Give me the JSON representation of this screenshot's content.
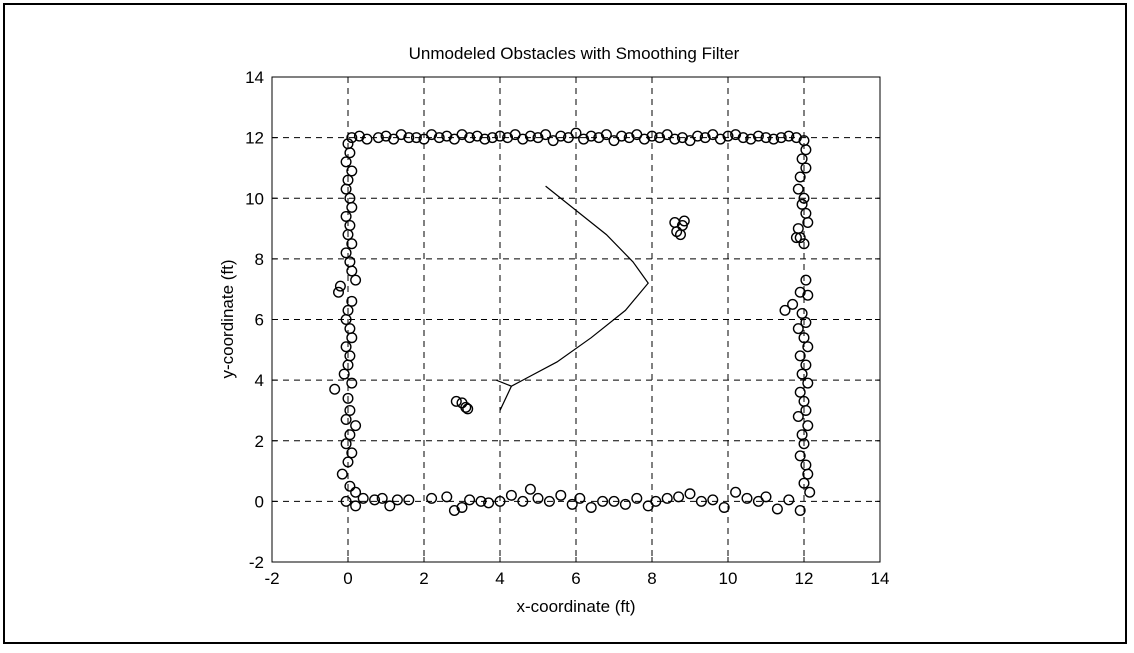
{
  "chart_data": {
    "type": "scatter",
    "title": "Unmodeled Obstacles with Smoothing Filter",
    "xlabel": "x-coordinate (ft)",
    "ylabel": "y-coordinate (ft)",
    "xlim": [
      -2,
      14
    ],
    "ylim": [
      -2,
      14
    ],
    "xticks": [
      -2,
      0,
      2,
      4,
      6,
      8,
      10,
      12,
      14
    ],
    "yticks": [
      -2,
      0,
      2,
      4,
      6,
      8,
      10,
      12,
      14
    ],
    "grid": true,
    "colors": {
      "marker": "#000000",
      "line": "#000000",
      "grid": "#000000"
    },
    "series": [
      {
        "type": "scatter",
        "marker": "circle-open",
        "points": [
          [
            0.1,
            12.0
          ],
          [
            0.3,
            12.05
          ],
          [
            0.5,
            11.95
          ],
          [
            0.8,
            12.0
          ],
          [
            1.0,
            12.05
          ],
          [
            1.2,
            11.95
          ],
          [
            1.4,
            12.1
          ],
          [
            1.6,
            12.0
          ],
          [
            1.8,
            12.0
          ],
          [
            2.0,
            11.95
          ],
          [
            2.2,
            12.1
          ],
          [
            2.4,
            12.0
          ],
          [
            2.6,
            12.05
          ],
          [
            2.8,
            11.95
          ],
          [
            3.0,
            12.1
          ],
          [
            3.2,
            12.0
          ],
          [
            3.4,
            12.05
          ],
          [
            3.6,
            11.95
          ],
          [
            3.8,
            12.0
          ],
          [
            4.0,
            12.05
          ],
          [
            4.2,
            12.0
          ],
          [
            4.4,
            12.1
          ],
          [
            4.6,
            11.95
          ],
          [
            4.8,
            12.05
          ],
          [
            5.0,
            12.0
          ],
          [
            5.2,
            12.1
          ],
          [
            5.4,
            11.9
          ],
          [
            5.6,
            12.05
          ],
          [
            5.8,
            12.0
          ],
          [
            6.0,
            12.15
          ],
          [
            6.2,
            11.95
          ],
          [
            6.4,
            12.05
          ],
          [
            6.6,
            12.0
          ],
          [
            6.8,
            12.1
          ],
          [
            7.0,
            11.9
          ],
          [
            7.2,
            12.05
          ],
          [
            7.4,
            12.0
          ],
          [
            7.6,
            12.1
          ],
          [
            7.8,
            11.95
          ],
          [
            8.0,
            12.05
          ],
          [
            8.2,
            12.0
          ],
          [
            8.4,
            12.1
          ],
          [
            8.6,
            11.95
          ],
          [
            8.8,
            12.0
          ],
          [
            9.0,
            11.9
          ],
          [
            9.2,
            12.05
          ],
          [
            9.4,
            12.0
          ],
          [
            9.6,
            12.1
          ],
          [
            9.8,
            11.95
          ],
          [
            10.0,
            12.05
          ],
          [
            10.2,
            12.1
          ],
          [
            10.4,
            12.0
          ],
          [
            10.6,
            11.95
          ],
          [
            10.8,
            12.05
          ],
          [
            11.0,
            12.0
          ],
          [
            11.2,
            11.95
          ],
          [
            11.4,
            12.0
          ],
          [
            11.6,
            12.05
          ],
          [
            11.8,
            12.0
          ],
          [
            0.0,
            11.8
          ],
          [
            0.05,
            11.5
          ],
          [
            -0.05,
            11.2
          ],
          [
            0.1,
            10.9
          ],
          [
            0.0,
            10.6
          ],
          [
            -0.05,
            10.3
          ],
          [
            0.05,
            10.0
          ],
          [
            0.1,
            9.7
          ],
          [
            -0.05,
            9.4
          ],
          [
            0.05,
            9.1
          ],
          [
            0.0,
            8.8
          ],
          [
            0.1,
            8.5
          ],
          [
            -0.05,
            8.2
          ],
          [
            0.05,
            7.9
          ],
          [
            0.1,
            7.6
          ],
          [
            0.2,
            7.3
          ],
          [
            -0.2,
            7.1
          ],
          [
            -0.25,
            6.9
          ],
          [
            0.1,
            6.6
          ],
          [
            0.0,
            6.3
          ],
          [
            -0.05,
            6.0
          ],
          [
            0.05,
            5.7
          ],
          [
            0.1,
            5.4
          ],
          [
            -0.05,
            5.1
          ],
          [
            0.05,
            4.8
          ],
          [
            0.0,
            4.5
          ],
          [
            -0.1,
            4.2
          ],
          [
            0.1,
            3.9
          ],
          [
            -0.35,
            3.7
          ],
          [
            0.0,
            3.4
          ],
          [
            0.05,
            3.0
          ],
          [
            -0.05,
            2.7
          ],
          [
            0.2,
            2.5
          ],
          [
            0.05,
            2.2
          ],
          [
            -0.05,
            1.9
          ],
          [
            0.1,
            1.6
          ],
          [
            0.0,
            1.3
          ],
          [
            -0.15,
            0.9
          ],
          [
            0.05,
            0.5
          ],
          [
            0.2,
            0.3
          ],
          [
            -0.05,
            0.0
          ],
          [
            0.2,
            -0.15
          ],
          [
            0.4,
            0.1
          ],
          [
            0.7,
            0.05
          ],
          [
            0.9,
            0.1
          ],
          [
            1.1,
            -0.15
          ],
          [
            1.3,
            0.05
          ],
          [
            1.6,
            0.05
          ],
          [
            2.2,
            0.1
          ],
          [
            2.6,
            0.15
          ],
          [
            2.8,
            -0.3
          ],
          [
            3.0,
            -0.2
          ],
          [
            3.2,
            0.05
          ],
          [
            3.5,
            0.0
          ],
          [
            3.7,
            -0.05
          ],
          [
            4.0,
            0.0
          ],
          [
            4.3,
            0.2
          ],
          [
            4.6,
            0.0
          ],
          [
            4.8,
            0.4
          ],
          [
            5.0,
            0.1
          ],
          [
            5.3,
            0.0
          ],
          [
            5.6,
            0.2
          ],
          [
            5.9,
            -0.1
          ],
          [
            6.1,
            0.1
          ],
          [
            6.4,
            -0.2
          ],
          [
            6.7,
            0.0
          ],
          [
            7.0,
            0.0
          ],
          [
            7.3,
            -0.1
          ],
          [
            7.6,
            0.1
          ],
          [
            7.9,
            -0.15
          ],
          [
            8.1,
            0.0
          ],
          [
            8.4,
            0.1
          ],
          [
            8.7,
            0.15
          ],
          [
            9.0,
            0.25
          ],
          [
            9.3,
            0.0
          ],
          [
            9.6,
            0.05
          ],
          [
            9.9,
            -0.2
          ],
          [
            10.2,
            0.3
          ],
          [
            10.5,
            0.1
          ],
          [
            10.8,
            0.0
          ],
          [
            11.0,
            0.15
          ],
          [
            11.3,
            -0.25
          ],
          [
            11.6,
            0.05
          ],
          [
            11.9,
            -0.3
          ],
          [
            12.0,
            11.9
          ],
          [
            12.05,
            11.6
          ],
          [
            11.95,
            11.3
          ],
          [
            12.05,
            11.0
          ],
          [
            11.9,
            10.7
          ],
          [
            11.85,
            10.3
          ],
          [
            12.0,
            10.0
          ],
          [
            11.95,
            9.8
          ],
          [
            12.05,
            9.5
          ],
          [
            12.1,
            9.2
          ],
          [
            11.85,
            9.0
          ],
          [
            11.9,
            8.7
          ],
          [
            12.0,
            8.5
          ],
          [
            11.8,
            8.7
          ],
          [
            12.05,
            7.3
          ],
          [
            12.1,
            6.8
          ],
          [
            11.9,
            6.9
          ],
          [
            11.7,
            6.5
          ],
          [
            11.5,
            6.3
          ],
          [
            11.95,
            6.2
          ],
          [
            12.05,
            5.9
          ],
          [
            11.85,
            5.7
          ],
          [
            12.0,
            5.4
          ],
          [
            12.1,
            5.1
          ],
          [
            11.9,
            4.8
          ],
          [
            12.05,
            4.5
          ],
          [
            11.95,
            4.2
          ],
          [
            12.1,
            3.9
          ],
          [
            11.9,
            3.6
          ],
          [
            12.0,
            3.3
          ],
          [
            12.05,
            3.0
          ],
          [
            11.85,
            2.8
          ],
          [
            12.1,
            2.5
          ],
          [
            11.95,
            2.2
          ],
          [
            12.0,
            1.9
          ],
          [
            11.9,
            1.5
          ],
          [
            12.05,
            1.2
          ],
          [
            12.1,
            0.9
          ],
          [
            12.0,
            0.6
          ],
          [
            12.15,
            0.3
          ],
          [
            8.6,
            9.2
          ],
          [
            8.8,
            9.1
          ],
          [
            8.65,
            8.9
          ],
          [
            8.75,
            8.8
          ],
          [
            8.85,
            9.25
          ],
          [
            2.85,
            3.3
          ],
          [
            3.0,
            3.25
          ],
          [
            3.1,
            3.1
          ],
          [
            3.15,
            3.05
          ]
        ]
      },
      {
        "type": "line",
        "points": [
          [
            5.2,
            10.4
          ],
          [
            6.0,
            9.6
          ],
          [
            6.8,
            8.8
          ],
          [
            7.5,
            7.9
          ],
          [
            7.9,
            7.2
          ],
          [
            7.3,
            6.3
          ],
          [
            6.4,
            5.4
          ],
          [
            5.5,
            4.6
          ],
          [
            4.6,
            4.0
          ],
          [
            4.3,
            3.8
          ],
          [
            3.9,
            4.0
          ]
        ]
      },
      {
        "type": "line",
        "points": [
          [
            4.3,
            3.8
          ],
          [
            4.0,
            3.0
          ]
        ]
      }
    ]
  }
}
